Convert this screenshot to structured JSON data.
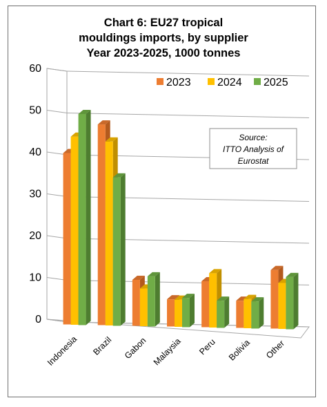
{
  "chart_data": {
    "type": "bar",
    "title": [
      "Chart 6: EU27 tropical",
      "mouldings imports, by supplier",
      "Year 2023-2025, 1000 tonnes"
    ],
    "categories": [
      "Indonesia",
      "Brazil",
      "Gabon",
      "Malaysia",
      "Peru",
      "Bolivia",
      "Other"
    ],
    "series": [
      {
        "name": "2023",
        "values": [
          41.0,
          48.0,
          11.0,
          6.5,
          11.0,
          6.5,
          14.0
        ]
      },
      {
        "name": "2024",
        "values": [
          45.0,
          44.0,
          9.0,
          6.5,
          13.0,
          7.0,
          11.0
        ]
      },
      {
        "name": "2025",
        "values": [
          50.5,
          35.5,
          12.0,
          7.0,
          6.5,
          6.5,
          12.5
        ]
      }
    ],
    "ylim": [
      0,
      60
    ],
    "yticks": [
      0,
      10,
      20,
      30,
      40,
      50,
      60
    ],
    "xlabel": "",
    "ylabel": "",
    "grid": true,
    "legend_position": "top-right",
    "annotation": [
      "Source:",
      "ITTO Analysis of",
      "Eurostat"
    ],
    "colors": {
      "2023": {
        "front": "#ed7d31",
        "side": "#b35a1d",
        "top": "#c9692a"
      },
      "2024": {
        "front": "#ffc000",
        "side": "#c08f00",
        "top": "#d9a300"
      },
      "2025": {
        "front": "#70ad47",
        "side": "#4e7d30",
        "top": "#5f953b"
      }
    }
  }
}
